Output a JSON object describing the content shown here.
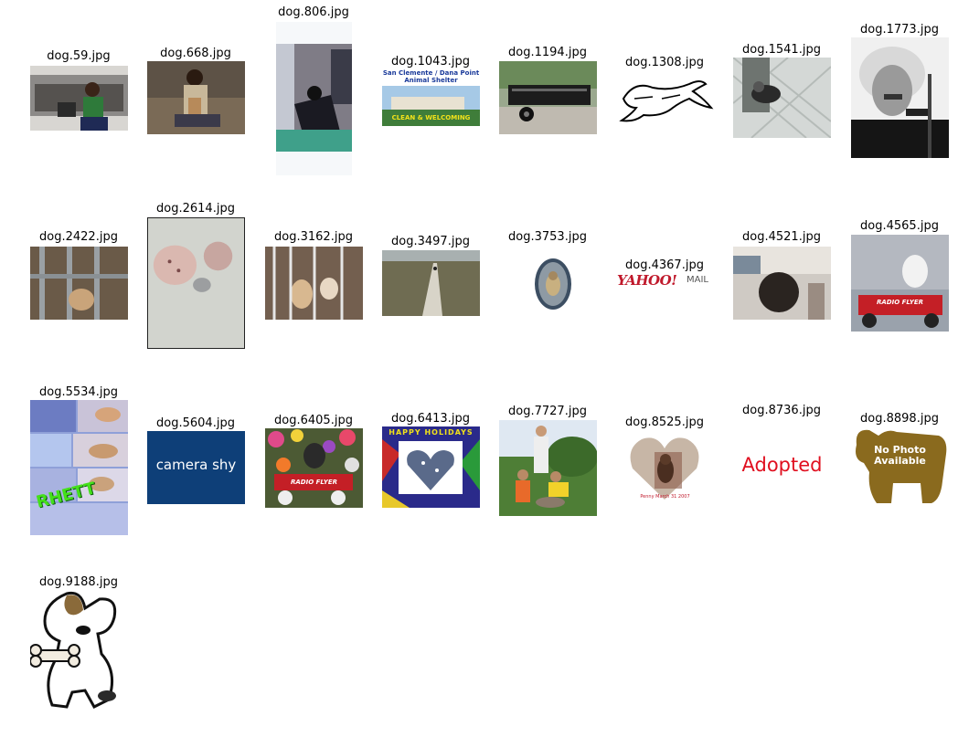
{
  "gallery": {
    "tiles": [
      {
        "filename": "dog.59.jpg",
        "subject": "person seated with dog on couch"
      },
      {
        "filename": "dog.668.jpg",
        "subject": "person kneeling holding small dog"
      },
      {
        "filename": "dog.806.jpg",
        "subject": "black dog in bedroom"
      },
      {
        "filename": "dog.1043.jpg",
        "subject": "animal shelter building sign",
        "text_lines": [
          "San Clemente / Dana Point",
          "Animal Shelter",
          "CLEAN & WELCOMING"
        ]
      },
      {
        "filename": "dog.1194.jpg",
        "subject": "utility trailer"
      },
      {
        "filename": "dog.1308.jpg",
        "subject": "running greyhound drawing"
      },
      {
        "filename": "dog.1541.jpg",
        "subject": "dog on tiled floor"
      },
      {
        "filename": "dog.1773.jpg",
        "subject": "black and white portrait with pipe"
      },
      {
        "filename": "dog.2422.jpg",
        "subject": "dogs behind kennel bars"
      },
      {
        "filename": "dog.2614.jpg",
        "subject": "two rocks and a coin"
      },
      {
        "filename": "dog.3162.jpg",
        "subject": "dogs in kennel cage"
      },
      {
        "filename": "dog.3497.jpg",
        "subject": "dog on long path in field"
      },
      {
        "filename": "dog.3753.jpg",
        "subject": "oval portrait of small dog"
      },
      {
        "filename": "dog.4367.jpg",
        "subject": "mail logo",
        "text_lines": [
          "YAHOO!",
          "MAIL"
        ]
      },
      {
        "filename": "dog.4521.jpg",
        "subject": "dog being groomed"
      },
      {
        "filename": "dog.4565.jpg",
        "subject": "dog in red wagon",
        "text_lines": [
          "RADIO FLYER"
        ]
      },
      {
        "filename": "dog.5534.jpg",
        "subject": "photo collage of dog",
        "text_lines": [
          "RHETT"
        ]
      },
      {
        "filename": "dog.5604.jpg",
        "subject": "placeholder",
        "text_lines": [
          "camera shy"
        ]
      },
      {
        "filename": "dog.6405.jpg",
        "subject": "dog in wagon with flowers",
        "text_lines": [
          "RADIO FLYER"
        ]
      },
      {
        "filename": "dog.6413.jpg",
        "subject": "holiday heart card",
        "text_lines": [
          "HAPPY HOLIDAYS"
        ]
      },
      {
        "filename": "dog.7727.jpg",
        "subject": "family outdoors with dog"
      },
      {
        "filename": "dog.8525.jpg",
        "subject": "heart frame puppy",
        "text_lines": [
          "Penny March 31 2007"
        ]
      },
      {
        "filename": "dog.8736.jpg",
        "subject": "text image",
        "text_lines": [
          "Adopted"
        ]
      },
      {
        "filename": "dog.8898.jpg",
        "subject": "dog silhouette placeholder",
        "text_lines": [
          "No Photo",
          "Available"
        ]
      },
      {
        "filename": "dog.9188.jpg",
        "subject": "cartoon dog with bone"
      }
    ]
  },
  "colors": {
    "caption_text": "#000000",
    "background": "#ffffff",
    "yahoo_red": "#c01a2c",
    "adopted_red": "#e01020",
    "silhouette_brown": "#8a6a1e",
    "camera_shy_blue": "#0e3f78"
  }
}
